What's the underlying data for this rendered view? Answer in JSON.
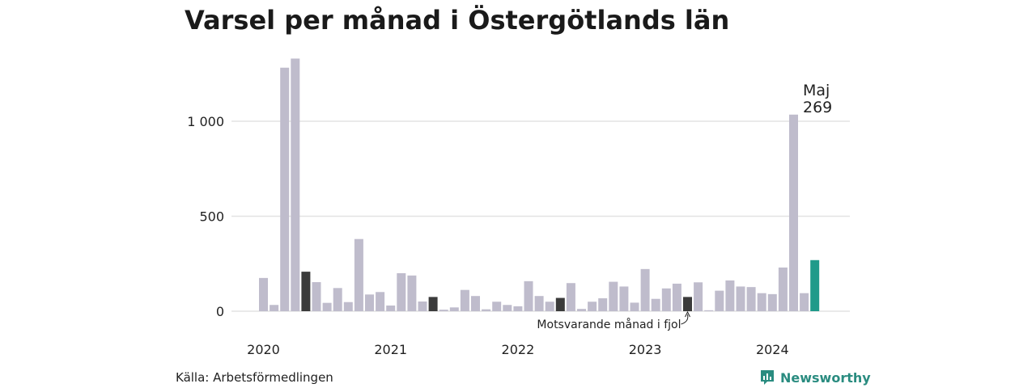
{
  "chart_data": {
    "type": "bar",
    "title": "Varsel per månad i Östergötlands län",
    "yticks": [
      0,
      500,
      1000
    ],
    "ytick_labels": [
      "0",
      "500",
      "1 000"
    ],
    "ylim": [
      0,
      1350
    ],
    "year_labels": [
      "2020",
      "2021",
      "2022",
      "2023",
      "2024"
    ],
    "values": [
      175,
      33,
      1282,
      1330,
      208,
      153,
      44,
      122,
      48,
      380,
      88,
      101,
      30,
      200,
      188,
      51,
      75,
      8,
      20,
      112,
      80,
      10,
      50,
      33,
      26,
      158,
      80,
      50,
      70,
      148,
      12,
      50,
      68,
      155,
      130,
      45,
      222,
      65,
      120,
      145,
      75,
      152,
      5,
      108,
      162,
      130,
      127,
      95,
      90,
      230,
      1035,
      95,
      269
    ],
    "comparison_index": [
      4,
      16,
      28,
      40
    ],
    "highlight_index": 52,
    "highlight_label": "Maj",
    "highlight_value_label": "269",
    "comparison_annotation": "Motsvarande månad i fjol",
    "colors": {
      "bar": "#bfbccc",
      "comparison": "#3b3b3b",
      "highlight": "#1f9a8a",
      "grid": "#e3e3e3"
    }
  },
  "footer": {
    "source": "Källa: Arbetsförmedlingen",
    "brand": "Newsworthy",
    "brand_icon": "newsworthy-logo-icon"
  }
}
